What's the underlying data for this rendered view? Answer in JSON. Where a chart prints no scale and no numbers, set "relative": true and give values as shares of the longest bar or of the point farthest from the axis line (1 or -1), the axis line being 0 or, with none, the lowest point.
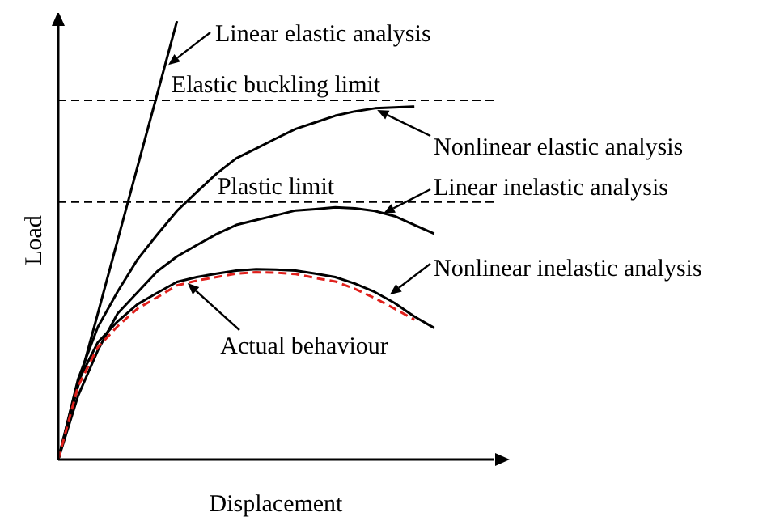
{
  "chart_data": {
    "type": "line",
    "relative": true,
    "xlabel": "Displacement",
    "ylabel": "Load",
    "categories": [
      null,
      null,
      null,
      null,
      null,
      null,
      null,
      null,
      null,
      null,
      null,
      null,
      null,
      null,
      null,
      null,
      null,
      null,
      null,
      null,
      null,
      null,
      null
    ],
    "series": [
      {
        "color": "#000000",
        "line_style": "solid",
        "values": [
          0,
          0.167,
          0.333,
          0.5,
          0.667,
          0.833,
          1,
          null,
          null,
          null,
          null,
          null,
          null,
          null,
          null,
          null,
          null,
          null,
          null,
          null,
          null,
          null,
          null
        ]
      },
      {
        "color": "#000000",
        "line_style": "solid",
        "values": [
          0,
          0.183,
          0.302,
          0.383,
          0.456,
          0.513,
          0.567,
          0.61,
          0.652,
          0.687,
          0.709,
          0.732,
          0.754,
          0.769,
          0.784,
          0.794,
          0.801,
          0.803,
          0.805,
          null,
          null,
          null,
          null
        ]
      },
      {
        "color": "#000000",
        "line_style": "solid",
        "values": [
          0,
          0.145,
          0.249,
          0.333,
          0.381,
          0.429,
          0.463,
          0.489,
          0.514,
          0.535,
          0.546,
          0.557,
          0.568,
          0.571,
          0.575,
          0.573,
          0.567,
          0.555,
          0.535,
          0.515,
          null,
          null,
          null
        ]
      },
      {
        "color": "#000000",
        "line_style": "solid",
        "values": [
          0,
          0.178,
          0.267,
          0.315,
          0.354,
          0.38,
          0.405,
          0.416,
          0.424,
          0.431,
          0.434,
          0.433,
          0.431,
          0.424,
          0.416,
          0.401,
          0.382,
          0.357,
          0.326,
          0.3,
          null,
          null,
          null
        ]
      },
      {
        "color": "#e0201c",
        "line_style": "dashed",
        "values": [
          0,
          0.167,
          0.256,
          0.304,
          0.344,
          0.37,
          0.397,
          0.408,
          0.416,
          0.424,
          0.427,
          0.426,
          0.423,
          0.414,
          0.406,
          0.389,
          0.368,
          0.344,
          0.319,
          null,
          null,
          null,
          null
        ]
      }
    ],
    "ref_lines": [
      {
        "axis": "y",
        "value": 0.819,
        "label": "Elastic buckling limit",
        "line_style": "dashed",
        "color": "#000000"
      },
      {
        "axis": "y",
        "value": 0.587,
        "label": "Plastic limit",
        "line_style": "dashed",
        "color": "#000000"
      }
    ],
    "annotations": [
      "Linear elastic analysis",
      "Nonlinear elastic analysis",
      "Linear inelastic analysis",
      "Nonlinear inelastic analysis",
      "Actual behaviour"
    ]
  }
}
